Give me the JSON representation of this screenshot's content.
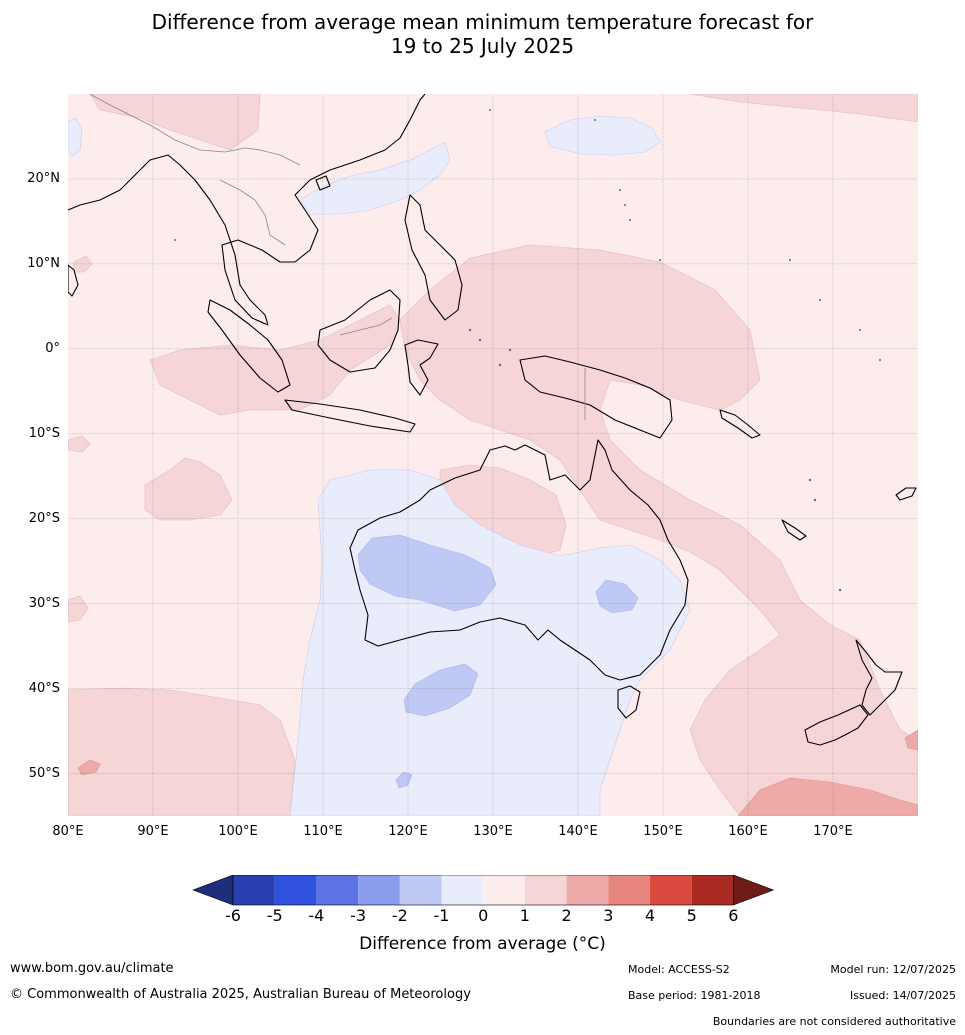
{
  "title": {
    "line1": "Difference from average mean minimum temperature forecast for",
    "line2": "19 to 25 July 2025"
  },
  "map": {
    "lon_range": [
      80,
      180
    ],
    "lat_range": [
      -55,
      30
    ],
    "lat_labels": [
      {
        "lat": 20,
        "label": "20°N"
      },
      {
        "lat": 10,
        "label": "10°N"
      },
      {
        "lat": 0,
        "label": "0°"
      },
      {
        "lat": -10,
        "label": "10°S"
      },
      {
        "lat": -20,
        "label": "20°S"
      },
      {
        "lat": -30,
        "label": "30°S"
      },
      {
        "lat": -40,
        "label": "40°S"
      },
      {
        "lat": -50,
        "label": "50°S"
      }
    ],
    "lon_labels": [
      {
        "lon": 80,
        "label": "80°E"
      },
      {
        "lon": 90,
        "label": "90°E"
      },
      {
        "lon": 100,
        "label": "100°E"
      },
      {
        "lon": 110,
        "label": "110°E"
      },
      {
        "lon": 120,
        "label": "120°E"
      },
      {
        "lon": 130,
        "label": "130°E"
      },
      {
        "lon": 140,
        "label": "140°E"
      },
      {
        "lon": 150,
        "label": "150°E"
      },
      {
        "lon": 160,
        "label": "160°E"
      },
      {
        "lon": 170,
        "label": "170°E"
      }
    ]
  },
  "legend": {
    "ticks": [
      "-6",
      "-5",
      "-4",
      "-3",
      "-2",
      "-1",
      "0",
      "1",
      "2",
      "3",
      "4",
      "5",
      "6"
    ],
    "colors": [
      "#1f2d7a",
      "#2a3faf",
      "#3050e0",
      "#5b73e3",
      "#8a9ceb",
      "#c0c9f3",
      "#e9ecfb",
      "#fcecec",
      "#f5d5d5",
      "#eeaaa6",
      "#e8877f",
      "#db4a3e",
      "#a82a22",
      "#6e1a16"
    ],
    "label": "Difference from average (°C)"
  },
  "footer": {
    "website": "www.bom.gov.au/climate",
    "copyright": "© Commonwealth of Australia 2025, Australian Bureau of Meteorology",
    "model": "Model: ACCESS-S2",
    "base_period": "Base period: 1981-2018",
    "model_run": "Model run: 12/07/2025",
    "issued": "Issued: 14/07/2025",
    "disclaimer": "Boundaries are not considered authoritative"
  }
}
